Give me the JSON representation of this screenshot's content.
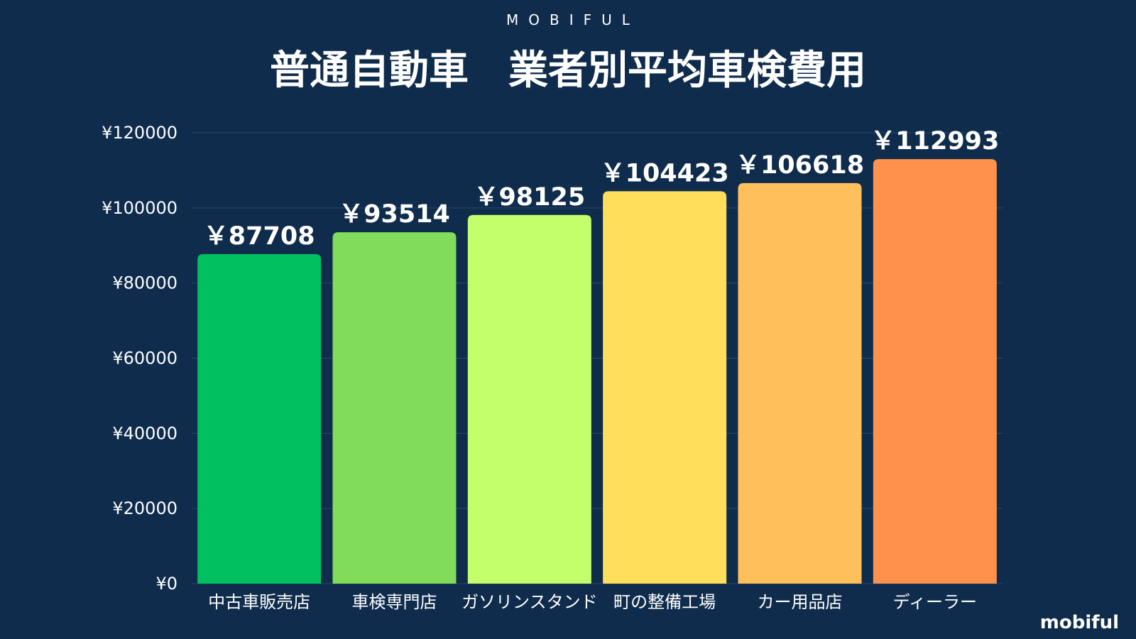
{
  "brand_top": "MOBIFUL",
  "logo": "mobiful",
  "background_color": "#0f2c4c",
  "chart_data": {
    "type": "bar",
    "title": "普通自動車　業者別平均車検費用",
    "categories": [
      "中古車販売店",
      "車検専門店",
      "ガソリンスタンド",
      "町の整備工場",
      "カー用品店",
      "ディーラー"
    ],
    "values": [
      87708,
      93514,
      98125,
      104423,
      106618,
      112993
    ],
    "data_labels": [
      "￥87708",
      "￥93514",
      "￥98125",
      "￥104423",
      "￥106618",
      "￥112993"
    ],
    "colors": [
      "#00c060",
      "#80dc5a",
      "#c2ff6a",
      "#ffde5c",
      "#ffc05c",
      "#ff914d"
    ],
    "y_ticks": [
      0,
      20000,
      40000,
      60000,
      80000,
      100000,
      120000
    ],
    "y_tick_labels": [
      "¥0",
      "¥20000",
      "¥40000",
      "¥60000",
      "¥80000",
      "¥100000",
      "¥120000"
    ],
    "ylim": [
      0,
      120000
    ],
    "grid": true,
    "legend": "none",
    "xlabel": "",
    "ylabel": ""
  }
}
